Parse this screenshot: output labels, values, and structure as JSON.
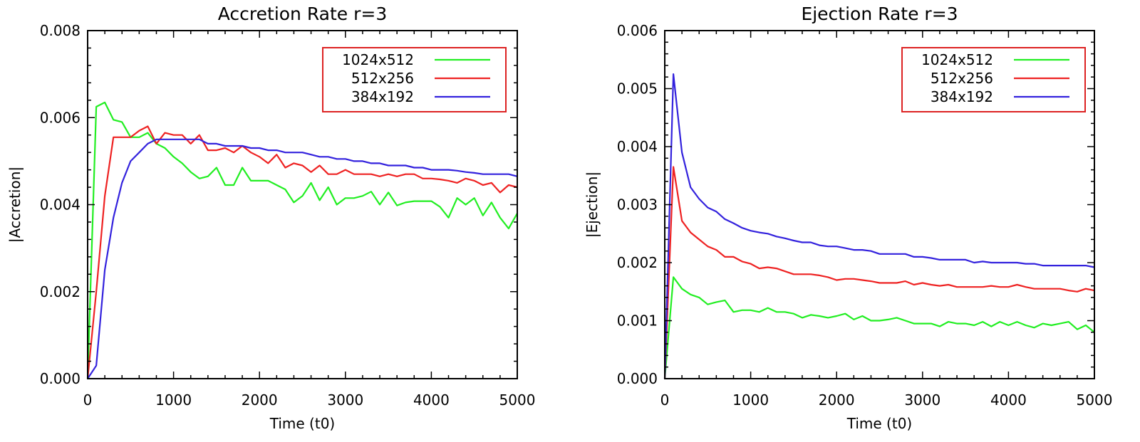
{
  "chart_data": [
    {
      "type": "line",
      "title": "Accretion Rate r=3",
      "xlabel": "Time (t0)",
      "ylabel": "|Accretion|",
      "xlim": [
        0,
        5000
      ],
      "ylim": [
        0,
        0.008
      ],
      "xticks": [
        0,
        1000,
        2000,
        3000,
        4000,
        5000
      ],
      "xtick_labels": [
        "0",
        "1000",
        "2000",
        "3000",
        "4000",
        "5000"
      ],
      "yticks": [
        0,
        0.002,
        0.004,
        0.006,
        0.008
      ],
      "ytick_labels": [
        "0.000",
        "0.002",
        "0.004",
        "0.006",
        "0.008"
      ],
      "grid": false,
      "legend": "top-right",
      "x": [
        0,
        100,
        200,
        300,
        400,
        500,
        600,
        700,
        800,
        900,
        1000,
        1100,
        1200,
        1300,
        1400,
        1500,
        1600,
        1700,
        1800,
        1900,
        2000,
        2100,
        2200,
        2300,
        2400,
        2500,
        2600,
        2700,
        2800,
        2900,
        3000,
        3100,
        3200,
        3300,
        3400,
        3500,
        3600,
        3700,
        3800,
        3900,
        4000,
        4100,
        4200,
        4300,
        4400,
        4500,
        4600,
        4700,
        4800,
        4900,
        5000
      ],
      "series": [
        {
          "name": "1024x512",
          "color": "#22ee22",
          "values": [
            0,
            0.00625,
            0.00635,
            0.00595,
            0.0059,
            0.00555,
            0.00555,
            0.00565,
            0.0054,
            0.0053,
            0.0051,
            0.00495,
            0.00475,
            0.0046,
            0.00465,
            0.00485,
            0.00445,
            0.00445,
            0.00485,
            0.00455,
            0.00455,
            0.00455,
            0.00445,
            0.00435,
            0.00405,
            0.0042,
            0.0045,
            0.0041,
            0.0044,
            0.004,
            0.00415,
            0.00415,
            0.0042,
            0.0043,
            0.004,
            0.00428,
            0.00398,
            0.00405,
            0.00408,
            0.00408,
            0.00408,
            0.00395,
            0.0037,
            0.00415,
            0.004,
            0.00415,
            0.00375,
            0.00405,
            0.0037,
            0.00345,
            0.0038
          ]
        },
        {
          "name": "512x256",
          "color": "#ee2222",
          "values": [
            0,
            0.002,
            0.0042,
            0.00555,
            0.00555,
            0.00555,
            0.0057,
            0.0058,
            0.0054,
            0.00565,
            0.0056,
            0.0056,
            0.0054,
            0.0056,
            0.00525,
            0.00525,
            0.0053,
            0.0052,
            0.00535,
            0.0052,
            0.0051,
            0.00495,
            0.00515,
            0.00485,
            0.00495,
            0.0049,
            0.00475,
            0.0049,
            0.0047,
            0.0047,
            0.0048,
            0.0047,
            0.0047,
            0.0047,
            0.00465,
            0.0047,
            0.00465,
            0.0047,
            0.0047,
            0.0046,
            0.0046,
            0.00458,
            0.00455,
            0.0045,
            0.0046,
            0.00455,
            0.00445,
            0.0045,
            0.00428,
            0.00445,
            0.0044
          ]
        },
        {
          "name": "384x192",
          "color": "#3322dd",
          "values": [
            0,
            0.0003,
            0.0025,
            0.0037,
            0.0045,
            0.005,
            0.0052,
            0.0054,
            0.0055,
            0.0055,
            0.0055,
            0.0055,
            0.0055,
            0.0055,
            0.0054,
            0.0054,
            0.00535,
            0.00535,
            0.00535,
            0.0053,
            0.0053,
            0.00525,
            0.00525,
            0.0052,
            0.0052,
            0.0052,
            0.00515,
            0.0051,
            0.0051,
            0.00505,
            0.00505,
            0.005,
            0.005,
            0.00495,
            0.00495,
            0.0049,
            0.0049,
            0.0049,
            0.00485,
            0.00485,
            0.0048,
            0.0048,
            0.0048,
            0.00478,
            0.00475,
            0.00473,
            0.0047,
            0.0047,
            0.0047,
            0.0047,
            0.00465
          ]
        }
      ]
    },
    {
      "type": "line",
      "title": "Ejection Rate r=3",
      "xlabel": "Time (t0)",
      "ylabel": "|Ejection|",
      "xlim": [
        0,
        5000
      ],
      "ylim": [
        0,
        0.006
      ],
      "xticks": [
        0,
        1000,
        2000,
        3000,
        4000,
        5000
      ],
      "xtick_labels": [
        "0",
        "1000",
        "2000",
        "3000",
        "4000",
        "5000"
      ],
      "yticks": [
        0,
        0.001,
        0.002,
        0.003,
        0.004,
        0.005,
        0.006
      ],
      "ytick_labels": [
        "0.000",
        "0.001",
        "0.002",
        "0.003",
        "0.004",
        "0.005",
        "0.006"
      ],
      "grid": false,
      "legend": "top-right",
      "x": [
        0,
        100,
        200,
        300,
        400,
        500,
        600,
        700,
        800,
        900,
        1000,
        1100,
        1200,
        1300,
        1400,
        1500,
        1600,
        1700,
        1800,
        1900,
        2000,
        2100,
        2200,
        2300,
        2400,
        2500,
        2600,
        2700,
        2800,
        2900,
        3000,
        3100,
        3200,
        3300,
        3400,
        3500,
        3600,
        3700,
        3800,
        3900,
        4000,
        4100,
        4200,
        4300,
        4400,
        4500,
        4600,
        4700,
        4800,
        4900,
        5000
      ],
      "series": [
        {
          "name": "1024x512",
          "color": "#22ee22",
          "values": [
            0,
            0.00175,
            0.00155,
            0.00145,
            0.0014,
            0.00128,
            0.00132,
            0.00135,
            0.00115,
            0.00118,
            0.00118,
            0.00115,
            0.00122,
            0.00115,
            0.00115,
            0.00112,
            0.00105,
            0.0011,
            0.00108,
            0.00105,
            0.00108,
            0.00112,
            0.00102,
            0.00108,
            0.001,
            0.001,
            0.00102,
            0.00105,
            0.001,
            0.00095,
            0.00095,
            0.00095,
            0.0009,
            0.00098,
            0.00095,
            0.00095,
            0.00092,
            0.00098,
            0.0009,
            0.00098,
            0.00092,
            0.00098,
            0.00092,
            0.00088,
            0.00095,
            0.00092,
            0.00095,
            0.00098,
            0.00085,
            0.00092,
            0.0008
          ]
        },
        {
          "name": "512x256",
          "color": "#ee2222",
          "values": [
            0,
            0.00365,
            0.00272,
            0.00252,
            0.0024,
            0.00228,
            0.00222,
            0.0021,
            0.0021,
            0.00202,
            0.00198,
            0.0019,
            0.00192,
            0.0019,
            0.00185,
            0.0018,
            0.0018,
            0.0018,
            0.00178,
            0.00175,
            0.0017,
            0.00172,
            0.00172,
            0.0017,
            0.00168,
            0.00165,
            0.00165,
            0.00165,
            0.00168,
            0.00162,
            0.00165,
            0.00162,
            0.0016,
            0.00162,
            0.00158,
            0.00158,
            0.00158,
            0.00158,
            0.0016,
            0.00158,
            0.00158,
            0.00162,
            0.00158,
            0.00155,
            0.00155,
            0.00155,
            0.00155,
            0.00152,
            0.0015,
            0.00155,
            0.00152
          ]
        },
        {
          "name": "384x192",
          "color": "#3322dd",
          "values": [
            0,
            0.00525,
            0.0039,
            0.0033,
            0.0031,
            0.00295,
            0.00288,
            0.00275,
            0.00268,
            0.0026,
            0.00255,
            0.00252,
            0.0025,
            0.00245,
            0.00242,
            0.00238,
            0.00235,
            0.00235,
            0.0023,
            0.00228,
            0.00228,
            0.00225,
            0.00222,
            0.00222,
            0.0022,
            0.00215,
            0.00215,
            0.00215,
            0.00215,
            0.0021,
            0.0021,
            0.00208,
            0.00205,
            0.00205,
            0.00205,
            0.00205,
            0.002,
            0.00202,
            0.002,
            0.002,
            0.002,
            0.002,
            0.00198,
            0.00198,
            0.00195,
            0.00195,
            0.00195,
            0.00195,
            0.00195,
            0.00195,
            0.00192
          ]
        }
      ]
    }
  ]
}
